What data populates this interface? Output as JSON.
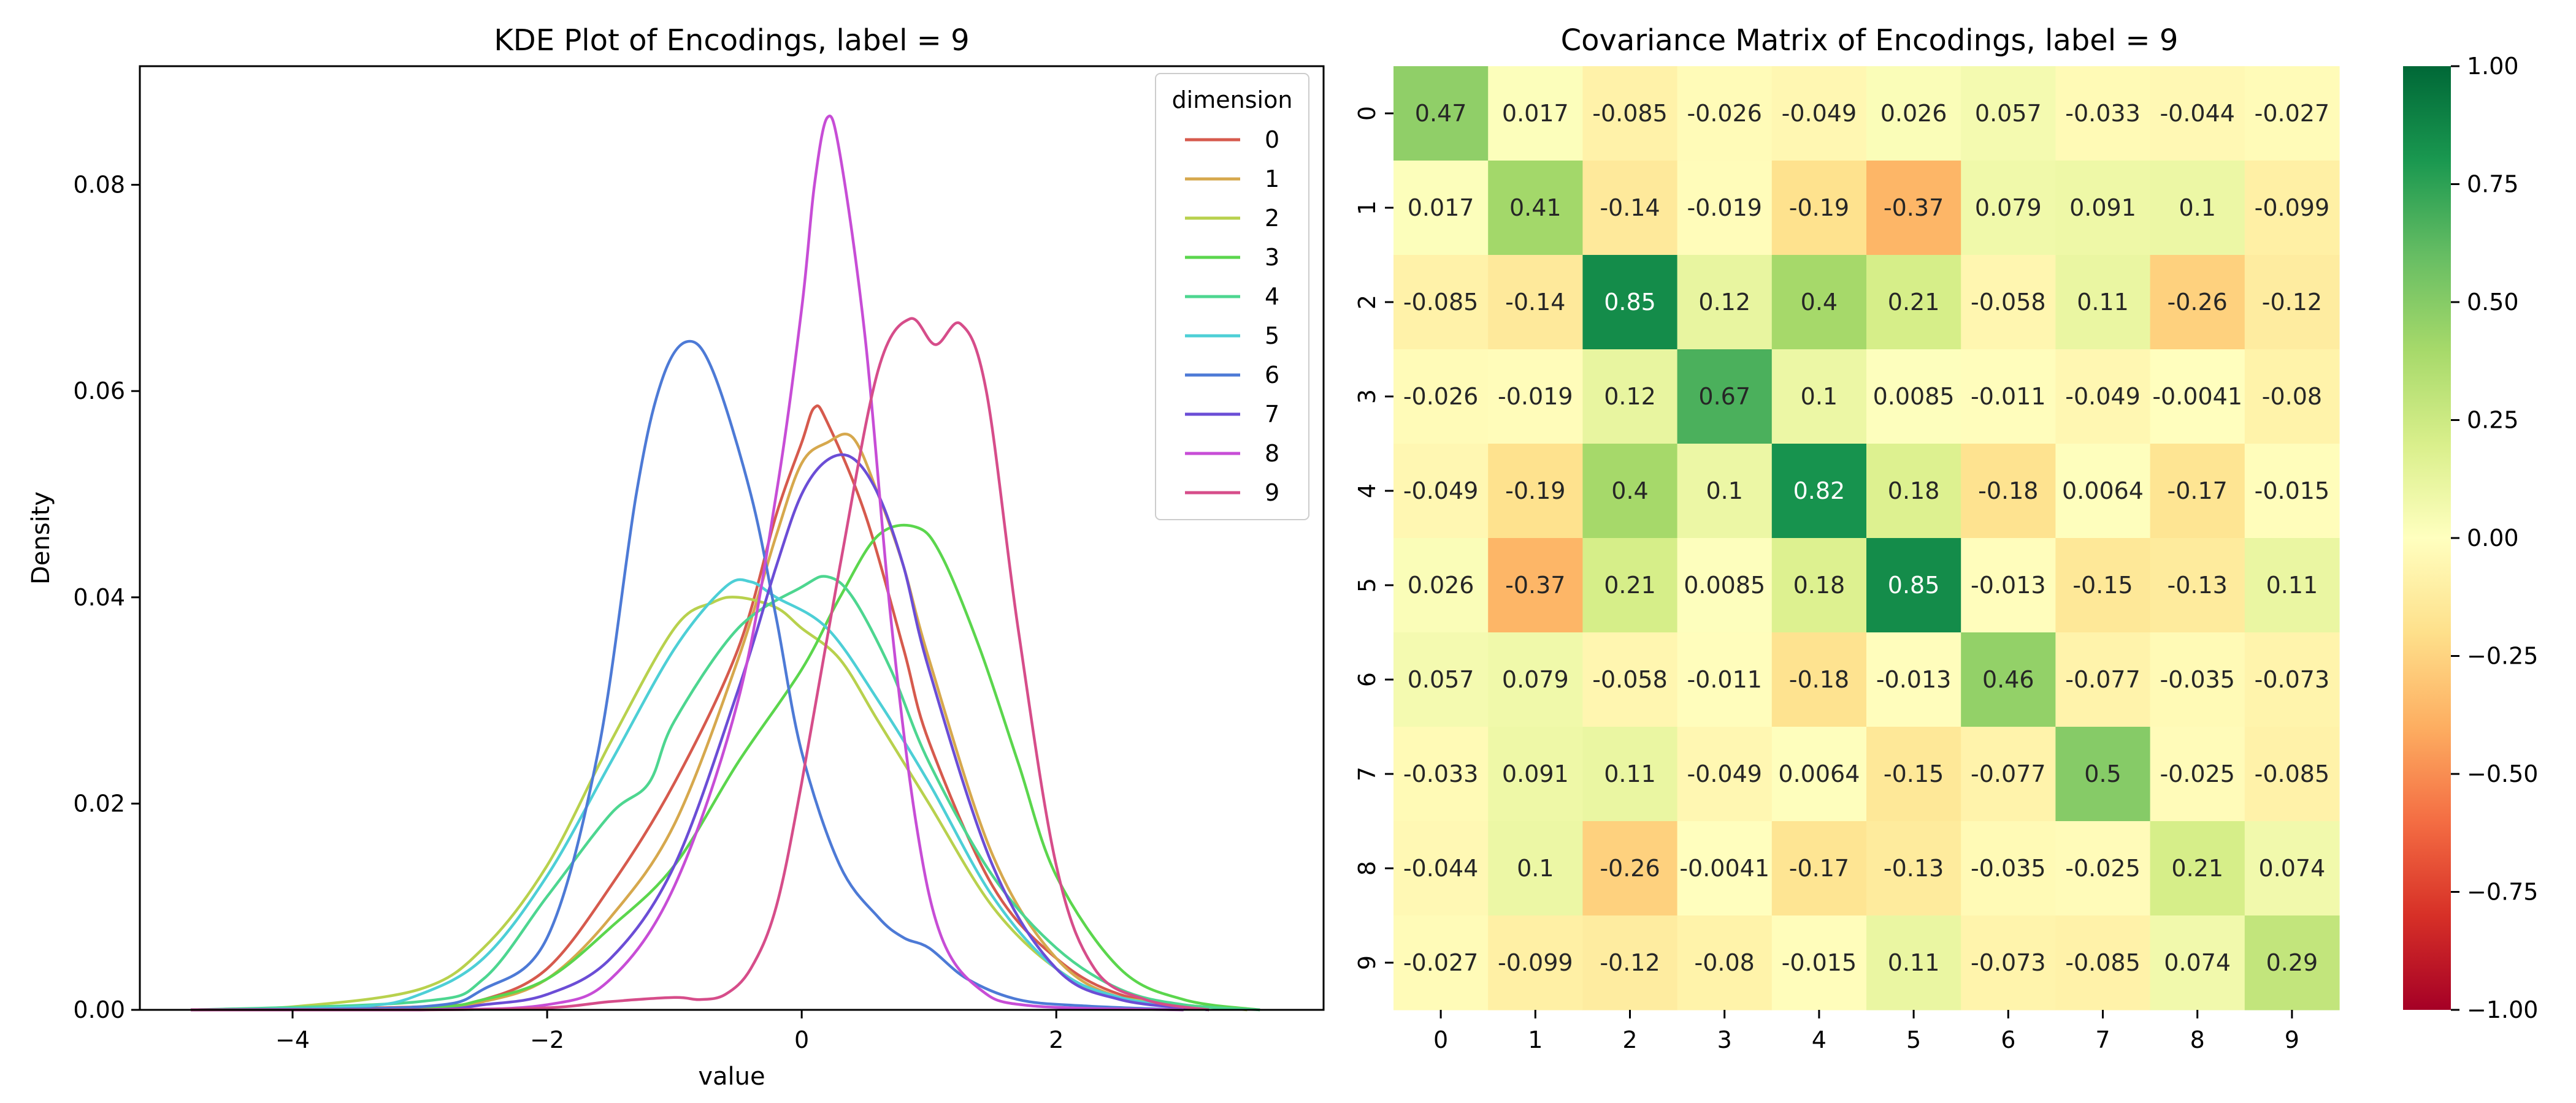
{
  "chart_data": [
    {
      "type": "line",
      "title": "KDE Plot of Encodings, label = 9",
      "xlabel": "value",
      "ylabel": "Density",
      "xlim": [
        -5.2,
        4.1
      ],
      "ylim": [
        0,
        0.0915
      ],
      "x_ticks": [
        "−4",
        "−2",
        "0",
        "2"
      ],
      "x_tick_values": [
        -4,
        -2,
        0,
        2
      ],
      "y_ticks": [
        "0.00",
        "0.02",
        "0.04",
        "0.06",
        "0.08"
      ],
      "y_tick_values": [
        0,
        0.02,
        0.04,
        0.06,
        0.08
      ],
      "legend": {
        "title": "dimension",
        "placement": "top-right"
      },
      "series": [
        {
          "name": "0",
          "color": "#d65a4d",
          "points": [
            [
              -4.8,
              0
            ],
            [
              -3,
              0.0003
            ],
            [
              -2.5,
              0.001
            ],
            [
              -2,
              0.004
            ],
            [
              -1.5,
              0.012
            ],
            [
              -1,
              0.022
            ],
            [
              -0.5,
              0.035
            ],
            [
              -0.2,
              0.048
            ],
            [
              0,
              0.055
            ],
            [
              0.1,
              0.0584
            ],
            [
              0.2,
              0.057
            ],
            [
              0.5,
              0.048
            ],
            [
              0.8,
              0.035
            ],
            [
              1,
              0.026
            ],
            [
              1.5,
              0.012
            ],
            [
              2,
              0.005
            ],
            [
              2.5,
              0.0015
            ],
            [
              3.2,
              0
            ]
          ]
        },
        {
          "name": "1",
          "color": "#d6a84d",
          "points": [
            [
              -4.8,
              0
            ],
            [
              -3,
              0.0002
            ],
            [
              -2.5,
              0.0008
            ],
            [
              -2,
              0.003
            ],
            [
              -1.5,
              0.009
            ],
            [
              -1,
              0.018
            ],
            [
              -0.5,
              0.034
            ],
            [
              -0.2,
              0.046
            ],
            [
              0,
              0.053
            ],
            [
              0.2,
              0.055
            ],
            [
              0.4,
              0.0555
            ],
            [
              0.6,
              0.05
            ],
            [
              0.8,
              0.043
            ],
            [
              1,
              0.034
            ],
            [
              1.5,
              0.015
            ],
            [
              2,
              0.005
            ],
            [
              2.5,
              0.0012
            ],
            [
              3.2,
              0
            ]
          ]
        },
        {
          "name": "2",
          "color": "#b8d14d",
          "points": [
            [
              -4.8,
              0
            ],
            [
              -4,
              0.0003
            ],
            [
              -3,
              0.002
            ],
            [
              -2.5,
              0.006
            ],
            [
              -2,
              0.014
            ],
            [
              -1.5,
              0.026
            ],
            [
              -1,
              0.037
            ],
            [
              -0.7,
              0.0395
            ],
            [
              -0.5,
              0.04
            ],
            [
              -0.2,
              0.039
            ],
            [
              0,
              0.037
            ],
            [
              0.3,
              0.034
            ],
            [
              0.6,
              0.028
            ],
            [
              1,
              0.02
            ],
            [
              1.5,
              0.01
            ],
            [
              2,
              0.004
            ],
            [
              2.5,
              0.0012
            ],
            [
              3.5,
              0
            ]
          ]
        },
        {
          "name": "3",
          "color": "#5bd64d",
          "points": [
            [
              -4.8,
              0
            ],
            [
              -3,
              0.0002
            ],
            [
              -2.5,
              0.001
            ],
            [
              -2,
              0.003
            ],
            [
              -1.5,
              0.008
            ],
            [
              -1,
              0.014
            ],
            [
              -0.5,
              0.024
            ],
            [
              0,
              0.033
            ],
            [
              0.3,
              0.04
            ],
            [
              0.6,
              0.046
            ],
            [
              0.9,
              0.0468
            ],
            [
              1.1,
              0.044
            ],
            [
              1.4,
              0.035
            ],
            [
              1.7,
              0.024
            ],
            [
              2,
              0.013
            ],
            [
              2.5,
              0.004
            ],
            [
              3,
              0.001
            ],
            [
              3.6,
              0
            ]
          ]
        },
        {
          "name": "4",
          "color": "#4dd690",
          "points": [
            [
              -4.8,
              0
            ],
            [
              -3,
              0.0008
            ],
            [
              -2.5,
              0.003
            ],
            [
              -2,
              0.011
            ],
            [
              -1.5,
              0.019
            ],
            [
              -1.2,
              0.022
            ],
            [
              -1,
              0.028
            ],
            [
              -0.5,
              0.037
            ],
            [
              0,
              0.041
            ],
            [
              0.2,
              0.042
            ],
            [
              0.4,
              0.04
            ],
            [
              0.7,
              0.033
            ],
            [
              1,
              0.024
            ],
            [
              1.5,
              0.013
            ],
            [
              2,
              0.006
            ],
            [
              2.5,
              0.002
            ],
            [
              3,
              0.0005
            ],
            [
              3.6,
              0
            ]
          ]
        },
        {
          "name": "5",
          "color": "#4dcfd6",
          "points": [
            [
              -4.8,
              0
            ],
            [
              -3.5,
              0.0003
            ],
            [
              -3,
              0.0015
            ],
            [
              -2.5,
              0.005
            ],
            [
              -2,
              0.013
            ],
            [
              -1.5,
              0.024
            ],
            [
              -1,
              0.035
            ],
            [
              -0.6,
              0.041
            ],
            [
              -0.4,
              0.0415
            ],
            [
              -0.2,
              0.04
            ],
            [
              0.2,
              0.037
            ],
            [
              0.6,
              0.03
            ],
            [
              1,
              0.022
            ],
            [
              1.5,
              0.011
            ],
            [
              2,
              0.004
            ],
            [
              2.5,
              0.0012
            ],
            [
              3.2,
              0
            ]
          ]
        },
        {
          "name": "6",
          "color": "#4d7ad6",
          "points": [
            [
              -4.8,
              0
            ],
            [
              -3,
              0.0003
            ],
            [
              -2.5,
              0.002
            ],
            [
              -2,
              0.007
            ],
            [
              -1.6,
              0.025
            ],
            [
              -1.3,
              0.05
            ],
            [
              -1.1,
              0.061
            ],
            [
              -0.9,
              0.0648
            ],
            [
              -0.7,
              0.062
            ],
            [
              -0.4,
              0.05
            ],
            [
              -0.2,
              0.038
            ],
            [
              0,
              0.025
            ],
            [
              0.3,
              0.014
            ],
            [
              0.6,
              0.009
            ],
            [
              0.8,
              0.007
            ],
            [
              1,
              0.006
            ],
            [
              1.3,
              0.003
            ],
            [
              1.7,
              0.001
            ],
            [
              2.2,
              0.0004
            ],
            [
              3,
              0
            ]
          ]
        },
        {
          "name": "7",
          "color": "#6b4dd6",
          "points": [
            [
              -4.8,
              0
            ],
            [
              -3,
              0
            ],
            [
              -2.5,
              0.0005
            ],
            [
              -2,
              0.0015
            ],
            [
              -1.5,
              0.005
            ],
            [
              -1,
              0.014
            ],
            [
              -0.5,
              0.031
            ],
            [
              -0.2,
              0.043
            ],
            [
              0,
              0.05
            ],
            [
              0.2,
              0.0533
            ],
            [
              0.4,
              0.0535
            ],
            [
              0.6,
              0.05
            ],
            [
              0.8,
              0.043
            ],
            [
              1,
              0.033
            ],
            [
              1.5,
              0.014
            ],
            [
              2,
              0.004
            ],
            [
              2.5,
              0.001
            ],
            [
              3.2,
              0
            ]
          ]
        },
        {
          "name": "8",
          "color": "#c74dd6",
          "points": [
            [
              -4.8,
              0
            ],
            [
              -3,
              0
            ],
            [
              -2,
              0.0005
            ],
            [
              -1.5,
              0.003
            ],
            [
              -1,
              0.012
            ],
            [
              -0.5,
              0.03
            ],
            [
              -0.2,
              0.05
            ],
            [
              0,
              0.068
            ],
            [
              0.1,
              0.08
            ],
            [
              0.2,
              0.0865
            ],
            [
              0.3,
              0.083
            ],
            [
              0.5,
              0.065
            ],
            [
              0.7,
              0.038
            ],
            [
              0.9,
              0.018
            ],
            [
              1.1,
              0.007
            ],
            [
              1.4,
              0.002
            ],
            [
              1.8,
              0.0004
            ],
            [
              3,
              0
            ]
          ]
        },
        {
          "name": "9",
          "color": "#d64d8a",
          "points": [
            [
              -4.8,
              0
            ],
            [
              -3,
              0
            ],
            [
              -2,
              0.0002
            ],
            [
              -1.5,
              0.0008
            ],
            [
              -1,
              0.0012
            ],
            [
              -0.8,
              0.001
            ],
            [
              -0.6,
              0.0015
            ],
            [
              -0.4,
              0.004
            ],
            [
              -0.2,
              0.01
            ],
            [
              0,
              0.022
            ],
            [
              0.3,
              0.043
            ],
            [
              0.6,
              0.062
            ],
            [
              0.85,
              0.067
            ],
            [
              1.05,
              0.0645
            ],
            [
              1.25,
              0.0665
            ],
            [
              1.45,
              0.06
            ],
            [
              1.7,
              0.037
            ],
            [
              2,
              0.014
            ],
            [
              2.3,
              0.004
            ],
            [
              2.7,
              0.001
            ],
            [
              3.2,
              0
            ]
          ]
        }
      ]
    },
    {
      "type": "heatmap",
      "title": "Covariance Matrix of Encodings, label = 9",
      "categories": [
        "0",
        "1",
        "2",
        "3",
        "4",
        "5",
        "6",
        "7",
        "8",
        "9"
      ],
      "values": [
        [
          0.47,
          0.017,
          -0.085,
          -0.026,
          -0.049,
          0.026,
          0.057,
          -0.033,
          -0.044,
          -0.027
        ],
        [
          0.017,
          0.41,
          -0.14,
          -0.019,
          -0.19,
          -0.37,
          0.079,
          0.091,
          0.1,
          -0.099
        ],
        [
          -0.085,
          -0.14,
          0.85,
          0.12,
          0.4,
          0.21,
          -0.058,
          0.11,
          -0.26,
          -0.12
        ],
        [
          -0.026,
          -0.019,
          0.12,
          0.67,
          0.1,
          0.0085,
          -0.011,
          -0.049,
          -0.0041,
          -0.08
        ],
        [
          -0.049,
          -0.19,
          0.4,
          0.1,
          0.82,
          0.18,
          -0.18,
          0.0064,
          -0.17,
          -0.015
        ],
        [
          0.026,
          -0.37,
          0.21,
          0.0085,
          0.18,
          0.85,
          -0.013,
          -0.15,
          -0.13,
          0.11
        ],
        [
          0.057,
          0.079,
          -0.058,
          -0.011,
          -0.18,
          -0.013,
          0.46,
          -0.077,
          -0.035,
          -0.073
        ],
        [
          -0.033,
          0.091,
          0.11,
          -0.049,
          0.0064,
          -0.15,
          -0.077,
          0.5,
          -0.025,
          -0.085
        ],
        [
          -0.044,
          0.1,
          -0.26,
          -0.0041,
          -0.17,
          -0.13,
          -0.035,
          -0.025,
          0.21,
          0.074
        ],
        [
          -0.027,
          -0.099,
          -0.12,
          -0.08,
          -0.015,
          0.11,
          -0.073,
          -0.085,
          0.074,
          0.29
        ]
      ],
      "cell_labels": [
        [
          "0.47",
          "0.017",
          "-0.085",
          "-0.026",
          "-0.049",
          "0.026",
          "0.057",
          "-0.033",
          "-0.044",
          "-0.027"
        ],
        [
          "0.017",
          "0.41",
          "-0.14",
          "-0.019",
          "-0.19",
          "-0.37",
          "0.079",
          "0.091",
          "0.1",
          "-0.099"
        ],
        [
          "-0.085",
          "-0.14",
          "0.85",
          "0.12",
          "0.4",
          "0.21",
          "-0.058",
          "0.11",
          "-0.26",
          "-0.12"
        ],
        [
          "-0.026",
          "-0.019",
          "0.12",
          "0.67",
          "0.1",
          "0.0085",
          "-0.011",
          "-0.049",
          "-0.0041",
          "-0.08"
        ],
        [
          "-0.049",
          "-0.19",
          "0.4",
          "0.1",
          "0.82",
          "0.18",
          "-0.18",
          "0.0064",
          "-0.17",
          "-0.015"
        ],
        [
          "0.026",
          "-0.37",
          "0.21",
          "0.0085",
          "0.18",
          "0.85",
          "-0.013",
          "-0.15",
          "-0.13",
          "0.11"
        ],
        [
          "0.057",
          "0.079",
          "-0.058",
          "-0.011",
          "-0.18",
          "-0.013",
          "0.46",
          "-0.077",
          "-0.035",
          "-0.073"
        ],
        [
          "-0.033",
          "0.091",
          "0.11",
          "-0.049",
          "0.0064",
          "-0.15",
          "-0.077",
          "0.5",
          "-0.025",
          "-0.085"
        ],
        [
          "-0.044",
          "0.1",
          "-0.26",
          "-0.0041",
          "-0.17",
          "-0.13",
          "-0.035",
          "-0.025",
          "0.21",
          "0.074"
        ],
        [
          "-0.027",
          "-0.099",
          "-0.12",
          "-0.08",
          "-0.015",
          "0.11",
          "-0.073",
          "-0.085",
          "0.074",
          "0.29"
        ]
      ],
      "colormap": "RdYlGn",
      "vmin": -1,
      "vmax": 1,
      "colorbar_ticks": [
        "−1.00",
        "−0.75",
        "−0.50",
        "−0.25",
        "0.00",
        "0.25",
        "0.50",
        "0.75",
        "1.00"
      ],
      "colorbar_tick_values": [
        -1,
        -0.75,
        -0.5,
        -0.25,
        0,
        0.25,
        0.5,
        0.75,
        1
      ]
    }
  ]
}
